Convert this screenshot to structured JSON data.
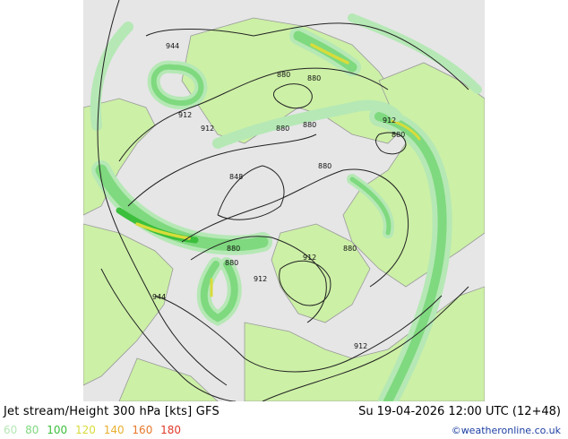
{
  "title": "Jet stream/Height 300 hPa [kts] GFS",
  "valid_time": "Su 19-04-2026 12:00 UTC (12+48)",
  "copyright": "©weatheronline.co.uk",
  "legend": [
    {
      "value": "60",
      "color": "#b5e8b5"
    },
    {
      "value": "80",
      "color": "#7fd97f"
    },
    {
      "value": "100",
      "color": "#3cbf3c"
    },
    {
      "value": "120",
      "color": "#d8dc3a"
    },
    {
      "value": "140",
      "color": "#e8b030"
    },
    {
      "value": "160",
      "color": "#e8782a"
    },
    {
      "value": "180",
      "color": "#e03a2a"
    }
  ],
  "map": {
    "contour_labels": [
      "944",
      "880",
      "880",
      "912",
      "912",
      "880",
      "880",
      "880",
      "848",
      "880",
      "880",
      "912",
      "880",
      "912",
      "912",
      "944",
      "912",
      "880"
    ],
    "colors": {
      "land": "#ccf0a6",
      "sea": "#e6e6e6",
      "coast": "#999999"
    }
  }
}
